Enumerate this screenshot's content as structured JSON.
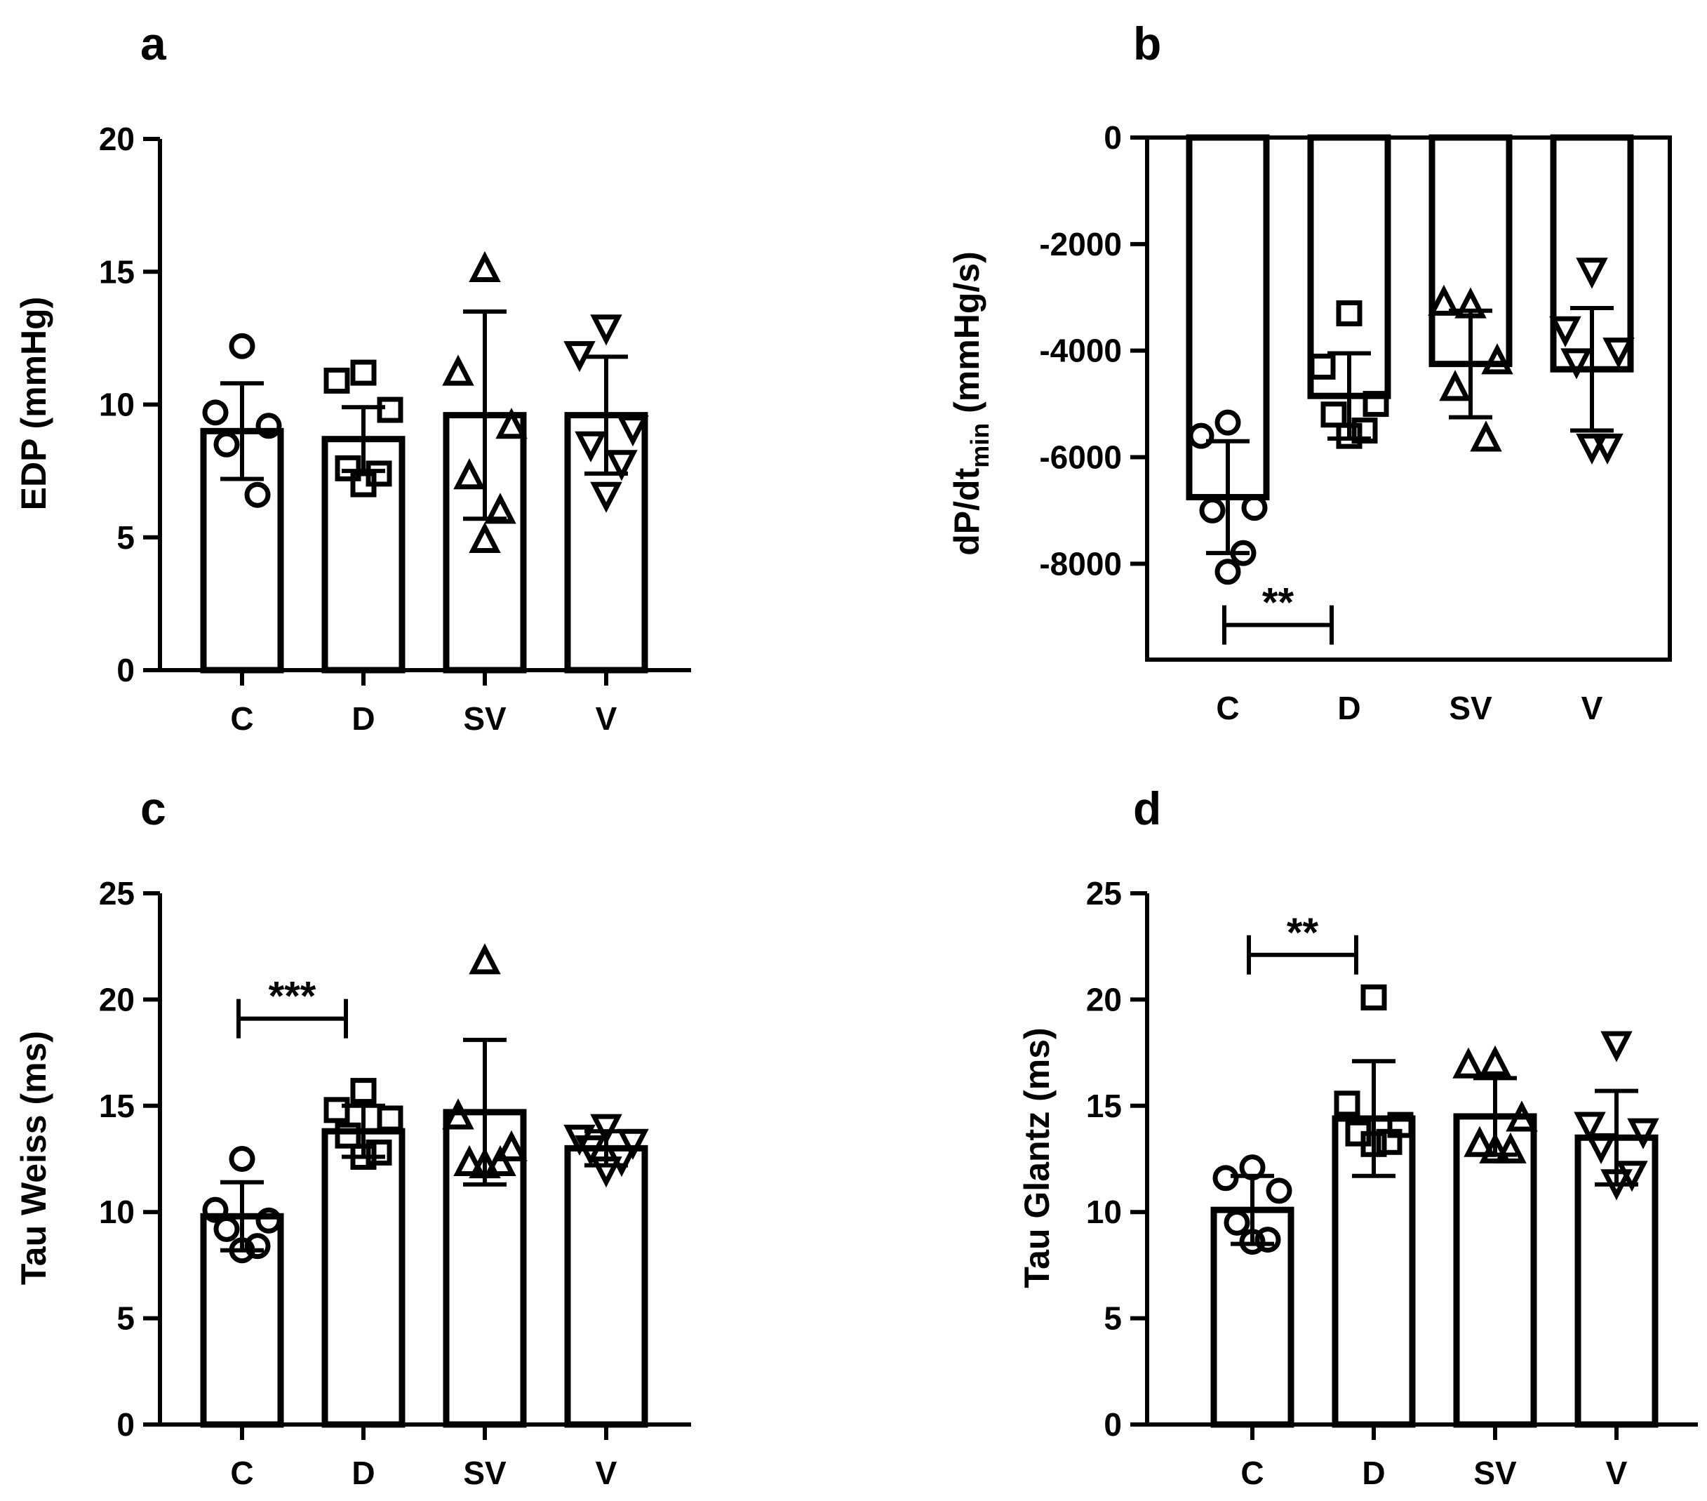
{
  "colors": {
    "ink": "#000000",
    "fill": "#ffffff"
  },
  "chart_data": [
    {
      "panel": "a",
      "type": "bar",
      "categories": [
        "C",
        "D",
        "SV",
        "V"
      ],
      "markers": [
        "circle",
        "square",
        "triangle-up",
        "triangle-down"
      ],
      "ylabel": "EDP (mmHg)",
      "ylim": [
        0,
        20
      ],
      "yticks": [
        0,
        5,
        10,
        15,
        20
      ],
      "means": [
        9.0,
        8.7,
        9.6,
        9.6
      ],
      "sd": [
        1.8,
        1.2,
        3.9,
        2.2
      ],
      "points": [
        [
          12.2,
          9.7,
          9.2,
          8.5,
          6.6
        ],
        [
          11.2,
          10.9,
          9.8,
          7.6,
          7.4,
          7.0
        ],
        [
          15.1,
          11.2,
          9.2,
          7.3,
          6.0,
          4.9
        ],
        [
          12.9,
          11.9,
          9.1,
          8.5,
          7.8,
          6.6
        ]
      ],
      "significance": []
    },
    {
      "panel": "b",
      "type": "bar",
      "categories": [
        "C",
        "D",
        "SV",
        "V"
      ],
      "markers": [
        "circle",
        "square",
        "triangle-up",
        "triangle-down"
      ],
      "ylabel_main": "dP/dt",
      "ylabel_sub": "min",
      "ylabel_unit": " (mmHg/s)",
      "ylim": [
        -9800,
        0
      ],
      "yticks": [
        0,
        -2000,
        -4000,
        -6000,
        -8000
      ],
      "means": [
        -6750,
        -4850,
        -4250,
        -4350
      ],
      "sd": [
        1050,
        800,
        1000,
        1150
      ],
      "points": [
        [
          -5350,
          -5600,
          -6950,
          -7000,
          -7800,
          -8150
        ],
        [
          -3300,
          -4300,
          -5000,
          -5200,
          -5500,
          -5600
        ],
        [
          -3150,
          -3100,
          -4200,
          -4700,
          -5650
        ],
        [
          -2500,
          -3600,
          -4000,
          -4200,
          -5800,
          -5800
        ]
      ],
      "significance": [
        {
          "from": 0,
          "to": 1,
          "label": "**",
          "value": -9150
        }
      ]
    },
    {
      "panel": "c",
      "type": "bar",
      "categories": [
        "C",
        "D",
        "SV",
        "V"
      ],
      "markers": [
        "circle",
        "square",
        "triangle-up",
        "triangle-down"
      ],
      "ylabel": "Tau Weiss (ms)",
      "ylim": [
        0,
        25
      ],
      "yticks": [
        0,
        5,
        10,
        15,
        20,
        25
      ],
      "means": [
        9.8,
        13.8,
        14.7,
        13.0
      ],
      "sd": [
        1.6,
        1.2,
        3.4,
        0.8
      ],
      "points": [
        [
          12.5,
          10.1,
          9.6,
          9.2,
          8.4,
          8.2
        ],
        [
          15.7,
          14.8,
          14.4,
          13.6,
          12.8,
          12.6
        ],
        [
          21.8,
          14.5,
          13.0,
          12.3,
          12.3,
          12.2
        ],
        [
          14.0,
          13.5,
          13.3,
          13.0,
          12.5,
          12.0
        ]
      ],
      "significance": [
        {
          "from": 0,
          "to": 1,
          "label": "***",
          "value": 19.1
        }
      ]
    },
    {
      "panel": "d",
      "type": "bar",
      "categories": [
        "C",
        "D",
        "SV",
        "V"
      ],
      "markers": [
        "circle",
        "square",
        "triangle-up",
        "triangle-down"
      ],
      "ylabel": "Tau Glantz (ms)",
      "ylim": [
        0,
        25
      ],
      "yticks": [
        0,
        5,
        10,
        15,
        20,
        25
      ],
      "means": [
        10.1,
        14.4,
        14.5,
        13.5
      ],
      "sd": [
        1.6,
        2.7,
        1.8,
        2.2
      ],
      "points": [
        [
          12.1,
          11.6,
          11.0,
          9.5,
          8.7,
          8.6
        ],
        [
          20.1,
          15.1,
          14.1,
          13.7,
          13.3,
          13.2
        ],
        [
          17.0,
          16.9,
          14.4,
          13.2,
          12.9,
          12.9
        ],
        [
          17.9,
          14.1,
          13.8,
          13.1,
          11.8,
          11.4
        ]
      ],
      "significance": [
        {
          "from": 0,
          "to": 1,
          "label": "**",
          "value": 22.1
        }
      ]
    }
  ]
}
